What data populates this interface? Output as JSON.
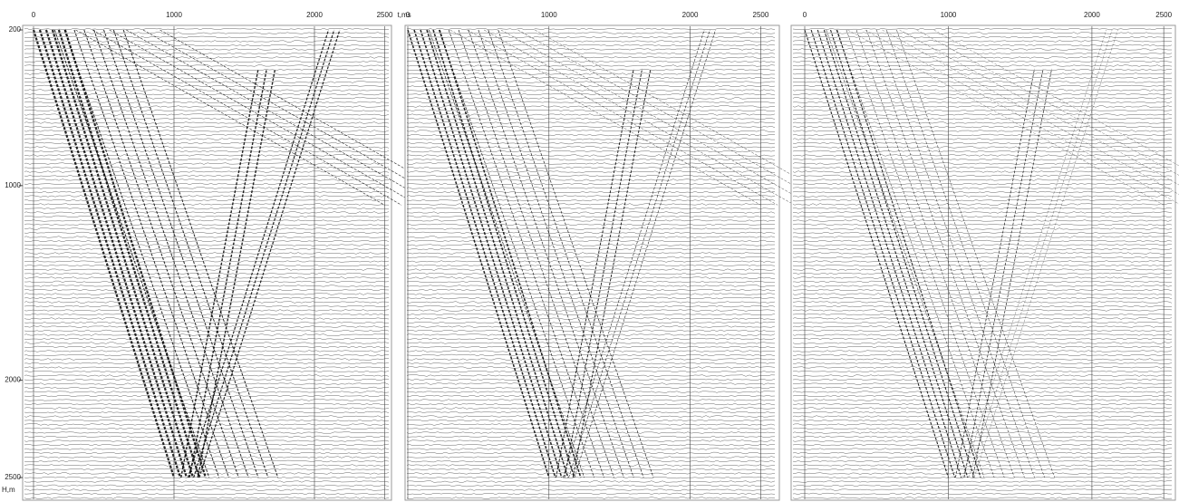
{
  "chart_data": [
    {
      "type": "seismogram",
      "xlim": [
        0,
        2600
      ],
      "xticks": [
        0,
        1000,
        2000,
        2500
      ],
      "xlabel": "t,ms",
      "ylim": [
        200,
        2500
      ],
      "yticks": [
        200,
        1000,
        2000,
        2500
      ],
      "ylabel": "H,m"
    },
    {
      "type": "seismogram",
      "xlim": [
        0,
        2600
      ],
      "xticks": [
        0,
        1000,
        2000,
        2500
      ],
      "ylim": [
        200,
        2500
      ]
    },
    {
      "type": "seismogram",
      "xlim": [
        0,
        2600
      ],
      "xticks": [
        0,
        1000,
        2000,
        2500
      ],
      "ylim": [
        200,
        2500
      ]
    }
  ]
}
